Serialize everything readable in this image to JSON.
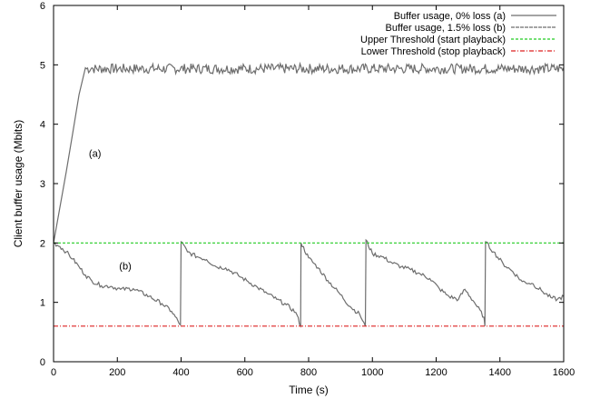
{
  "chart_data": {
    "type": "line",
    "xlabel": "Time (s)",
    "ylabel": "Client buffer usage (Mbits)",
    "xlim": [
      0,
      1600
    ],
    "ylim": [
      0,
      6
    ],
    "x_ticks": [
      0,
      200,
      400,
      600,
      800,
      1000,
      1200,
      1400,
      1600
    ],
    "y_ticks": [
      0,
      1,
      2,
      3,
      4,
      5,
      6
    ],
    "legend_position": "top-right",
    "series": [
      {
        "name": "Buffer usage, 0% loss (a)",
        "color": "#6e6e6e",
        "style": "solid",
        "x": [
          0,
          20,
          40,
          60,
          80,
          100,
          120,
          1600
        ],
        "y": [
          2.0,
          2.6,
          3.2,
          3.85,
          4.5,
          4.95,
          4.95,
          4.95
        ],
        "noise_band": {
          "from_x": 100,
          "y_min": 4.85,
          "y_max": 5.02
        }
      },
      {
        "name": "Buffer usage, 1.5% loss (b)",
        "color": "#6e6e6e",
        "style": "solid",
        "x": [
          0,
          20,
          40,
          60,
          80,
          100,
          120,
          150,
          180,
          210,
          250,
          300,
          340,
          370,
          398,
          400,
          420,
          450,
          480,
          510,
          540,
          580,
          610,
          640,
          670,
          700,
          730,
          760,
          775,
          776,
          800,
          830,
          860,
          900,
          930,
          960,
          978,
          980,
          1000,
          1030,
          1060,
          1090,
          1120,
          1150,
          1180,
          1210,
          1240,
          1270,
          1290,
          1320,
          1350,
          1353,
          1355,
          1380,
          1410,
          1440,
          1470,
          1500,
          1530,
          1560,
          1580,
          1600
        ],
        "y": [
          2.0,
          1.94,
          1.85,
          1.73,
          1.6,
          1.46,
          1.36,
          1.28,
          1.27,
          1.22,
          1.23,
          1.1,
          0.98,
          0.85,
          0.62,
          2.02,
          1.85,
          1.77,
          1.72,
          1.6,
          1.58,
          1.45,
          1.35,
          1.25,
          1.15,
          1.05,
          0.96,
          0.83,
          0.6,
          2.0,
          1.75,
          1.58,
          1.37,
          1.13,
          0.93,
          0.8,
          0.6,
          2.05,
          1.82,
          1.77,
          1.67,
          1.6,
          1.55,
          1.48,
          1.4,
          1.23,
          1.1,
          1.05,
          1.22,
          1.0,
          0.75,
          0.6,
          2.02,
          1.85,
          1.65,
          1.52,
          1.35,
          1.32,
          1.2,
          1.08,
          1.05,
          1.1
        ]
      },
      {
        "name": "Upper Threshold (start playback)",
        "color": "#22cc22",
        "style": "dashed",
        "x": [
          0,
          1600
        ],
        "y": [
          2.0,
          2.0
        ]
      },
      {
        "name": "Lower Threshold (stop playback)",
        "color": "#dd2222",
        "style": "dashdot",
        "x": [
          0,
          1600
        ],
        "y": [
          0.6,
          0.6
        ]
      }
    ],
    "annotations": [
      {
        "text": "(a)",
        "x": 130,
        "y": 3.45
      },
      {
        "text": "(b)",
        "x": 225,
        "y": 1.55
      }
    ]
  }
}
